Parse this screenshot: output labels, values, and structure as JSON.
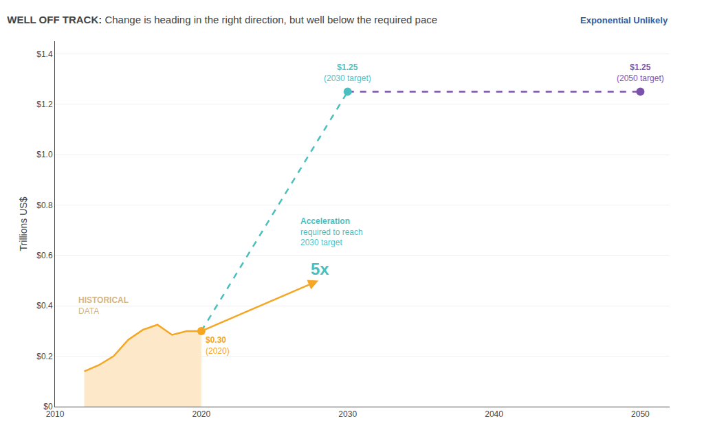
{
  "chart_data": {
    "type": "line",
    "title": "WELL OFF TRACK:",
    "subtitle": "Change is heading in the right direction, but well below the required pace",
    "ylabel": "Trillions US$",
    "xlim": [
      2010,
      2052
    ],
    "xticks": [
      2010,
      2020,
      2030,
      2040,
      2050
    ],
    "ylim": [
      0,
      1.45
    ],
    "yticks": [
      {
        "value": 0,
        "label": "$0"
      },
      {
        "value": 0.2,
        "label": "$0.2"
      },
      {
        "value": 0.4,
        "label": "$0.4"
      },
      {
        "value": 0.6,
        "label": "$0.6"
      },
      {
        "value": 0.8,
        "label": "$0.8"
      },
      {
        "value": 1.0,
        "label": "$1.0"
      },
      {
        "value": 1.2,
        "label": "$1.2"
      },
      {
        "value": 1.4,
        "label": "$1.4"
      }
    ],
    "grid": "y",
    "series": [
      {
        "type": "area",
        "x": [
          2012,
          2013,
          2014,
          2015,
          2016,
          2017,
          2018,
          2019,
          2020
        ],
        "values": [
          0.14,
          0.165,
          0.2,
          0.265,
          0.305,
          0.325,
          0.285,
          0.3,
          0.3
        ],
        "color": "#f5a623",
        "fill_color": "#fde9c9"
      },
      {
        "type": "line",
        "x": [
          2020,
          2030
        ],
        "values": [
          0.3,
          1.25
        ],
        "color": "#4bbfbf",
        "line_style": "dashed"
      },
      {
        "type": "line",
        "x": [
          2030,
          2050
        ],
        "values": [
          1.25,
          1.25
        ],
        "color": "#7b52ab",
        "line_style": "dashed"
      },
      {
        "type": "arrow",
        "x": [
          2020,
          2028
        ],
        "values": [
          0.3,
          0.5
        ],
        "color": "#f5a623"
      },
      {
        "type": "scatter",
        "x": [
          2030
        ],
        "values": [
          1.25
        ],
        "color": "#4bbfbf"
      },
      {
        "type": "scatter",
        "x": [
          2050
        ],
        "values": [
          1.25
        ],
        "color": "#7b52ab"
      },
      {
        "type": "scatter",
        "x": [
          2020
        ],
        "values": [
          0.3
        ],
        "color": "#f5a623"
      }
    ],
    "annotations": [
      {
        "text": "$0.30\n(2020)",
        "x": 2020,
        "y": 0.3,
        "position": "below right",
        "color": "#f5a623"
      },
      {
        "text": "$1.25\n(2030 target)",
        "x": 2030,
        "y": 1.25,
        "position": "above",
        "color": "#4bbfbf"
      },
      {
        "text": "$1.25\n(2050 target)",
        "x": 2050,
        "y": 1.25,
        "position": "above",
        "color": "#7b52ab"
      },
      {
        "text": "HISTORICAL\nDATA",
        "x": 2011.5,
        "y": 0.355,
        "position": "above right",
        "color": "#d4b483"
      },
      {
        "text": "Acceleration\nrequired to reach\n2030 target",
        "x": 2026.5,
        "y": 0.77,
        "position": "below right",
        "color": "#4bbfbf"
      },
      {
        "text": "5x",
        "x": 2027.2,
        "y": 0.6,
        "position": "below right",
        "color": "#4bbfbf"
      },
      {
        "text": "Exponential Unlikely",
        "color": "#2e5fa3"
      }
    ]
  }
}
